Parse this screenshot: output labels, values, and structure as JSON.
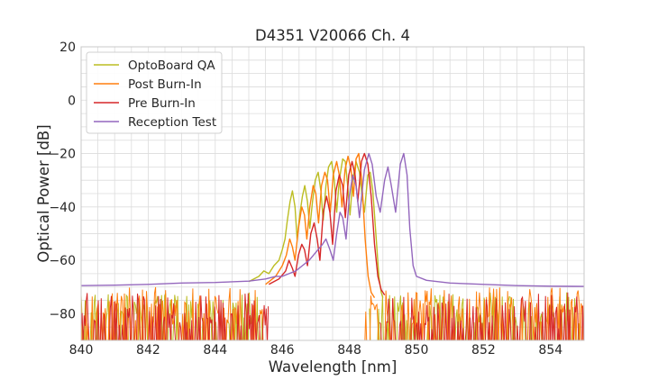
{
  "chart_data": {
    "type": "line",
    "title": "D4351 V20066 Ch. 4",
    "xlabel": "Wavelength [nm]",
    "ylabel": "Optical Power [dB]",
    "xlim": [
      840,
      855
    ],
    "ylim": [
      -90,
      20
    ],
    "xticks": [
      840,
      842,
      844,
      846,
      848,
      850,
      852,
      854
    ],
    "yticks": [
      20,
      0,
      -20,
      -40,
      -60,
      -80
    ],
    "ytick_labels": [
      "20",
      "0",
      "−20",
      "−40",
      "−60",
      "−80"
    ],
    "grid": true,
    "legend_position": "top-left",
    "series": [
      {
        "name": "OptoBoard QA",
        "color": "#bcbd22",
        "points": [
          [
            845.0,
            -68
          ],
          [
            845.3,
            -66
          ],
          [
            845.45,
            -64
          ],
          [
            845.6,
            -65
          ],
          [
            845.75,
            -62
          ],
          [
            845.9,
            -60
          ],
          [
            846.0,
            -56
          ],
          [
            846.08,
            -52
          ],
          [
            846.15,
            -45
          ],
          [
            846.23,
            -38
          ],
          [
            846.3,
            -34
          ],
          [
            846.38,
            -40
          ],
          [
            846.44,
            -52
          ],
          [
            846.52,
            -43
          ],
          [
            846.6,
            -36
          ],
          [
            846.67,
            -32
          ],
          [
            846.75,
            -38
          ],
          [
            846.82,
            -48
          ],
          [
            846.9,
            -38
          ],
          [
            846.98,
            -30
          ],
          [
            847.07,
            -27
          ],
          [
            847.15,
            -34
          ],
          [
            847.22,
            -45
          ],
          [
            847.3,
            -32
          ],
          [
            847.38,
            -25
          ],
          [
            847.47,
            -23
          ],
          [
            847.55,
            -30
          ],
          [
            847.62,
            -42
          ],
          [
            847.7,
            -30
          ],
          [
            847.8,
            -22
          ],
          [
            847.88,
            -23
          ],
          [
            847.95,
            -32
          ],
          [
            848.02,
            -43
          ],
          [
            848.1,
            -30
          ],
          [
            848.2,
            -23
          ],
          [
            848.3,
            -27
          ],
          [
            848.38,
            -36
          ],
          [
            848.45,
            -42
          ],
          [
            848.55,
            -28
          ],
          [
            848.62,
            -27
          ],
          [
            848.7,
            -34
          ],
          [
            848.8,
            -52
          ],
          [
            848.88,
            -66
          ],
          [
            848.95,
            -72
          ],
          [
            849.0,
            -74
          ]
        ]
      },
      {
        "name": "Post Burn-In",
        "color": "#ff7f0e",
        "points": [
          [
            845.5,
            -69
          ],
          [
            845.8,
            -66
          ],
          [
            846.0,
            -62
          ],
          [
            846.12,
            -58
          ],
          [
            846.22,
            -52
          ],
          [
            846.3,
            -55
          ],
          [
            846.38,
            -60
          ],
          [
            846.48,
            -48
          ],
          [
            846.58,
            -40
          ],
          [
            846.66,
            -43
          ],
          [
            846.73,
            -52
          ],
          [
            846.82,
            -40
          ],
          [
            846.92,
            -32
          ],
          [
            847.0,
            -35
          ],
          [
            847.08,
            -46
          ],
          [
            847.17,
            -32
          ],
          [
            847.27,
            -27
          ],
          [
            847.35,
            -30
          ],
          [
            847.43,
            -42
          ],
          [
            847.52,
            -28
          ],
          [
            847.62,
            -23
          ],
          [
            847.7,
            -28
          ],
          [
            847.78,
            -40
          ],
          [
            847.87,
            -26
          ],
          [
            847.96,
            -21
          ],
          [
            848.05,
            -26
          ],
          [
            848.12,
            -36
          ],
          [
            848.2,
            -22
          ],
          [
            848.28,
            -20
          ],
          [
            848.37,
            -30
          ],
          [
            848.47,
            -52
          ],
          [
            848.56,
            -66
          ],
          [
            848.65,
            -72
          ],
          [
            848.75,
            -74
          ]
        ]
      },
      {
        "name": "Pre Burn-In",
        "color": "#d62728",
        "points": [
          [
            845.6,
            -69
          ],
          [
            845.9,
            -67
          ],
          [
            846.1,
            -64
          ],
          [
            846.2,
            -60
          ],
          [
            846.3,
            -63
          ],
          [
            846.38,
            -66
          ],
          [
            846.48,
            -58
          ],
          [
            846.58,
            -54
          ],
          [
            846.66,
            -56
          ],
          [
            846.75,
            -62
          ],
          [
            846.85,
            -50
          ],
          [
            846.95,
            -46
          ],
          [
            847.04,
            -52
          ],
          [
            847.12,
            -60
          ],
          [
            847.22,
            -42
          ],
          [
            847.32,
            -36
          ],
          [
            847.42,
            -42
          ],
          [
            847.5,
            -54
          ],
          [
            847.6,
            -34
          ],
          [
            847.7,
            -28
          ],
          [
            847.8,
            -32
          ],
          [
            847.88,
            -44
          ],
          [
            847.98,
            -28
          ],
          [
            848.08,
            -23
          ],
          [
            848.17,
            -28
          ],
          [
            848.25,
            -38
          ],
          [
            848.36,
            -23
          ],
          [
            848.45,
            -20
          ],
          [
            848.55,
            -24
          ],
          [
            848.65,
            -36
          ],
          [
            848.75,
            -54
          ],
          [
            848.85,
            -66
          ],
          [
            848.95,
            -71
          ],
          [
            849.05,
            -73
          ]
        ]
      },
      {
        "name": "Reception Test",
        "color": "#9467bd",
        "points": [
          [
            840,
            -69.5
          ],
          [
            841,
            -69.3
          ],
          [
            842,
            -69
          ],
          [
            843,
            -68.5
          ],
          [
            844,
            -68.3
          ],
          [
            845,
            -67.8
          ],
          [
            845.5,
            -67
          ],
          [
            845.8,
            -66
          ],
          [
            846.0,
            -66
          ],
          [
            846.2,
            -65
          ],
          [
            846.4,
            -64
          ],
          [
            846.6,
            -62
          ],
          [
            846.8,
            -60
          ],
          [
            847.0,
            -57
          ],
          [
            847.2,
            -54
          ],
          [
            847.3,
            -52
          ],
          [
            847.42,
            -56
          ],
          [
            847.52,
            -60
          ],
          [
            847.62,
            -50
          ],
          [
            847.72,
            -42
          ],
          [
            847.8,
            -44
          ],
          [
            847.9,
            -52
          ],
          [
            848.0,
            -36
          ],
          [
            848.1,
            -28
          ],
          [
            848.2,
            -32
          ],
          [
            848.3,
            -44
          ],
          [
            848.45,
            -26
          ],
          [
            848.58,
            -20
          ],
          [
            848.68,
            -24
          ],
          [
            848.8,
            -36
          ],
          [
            848.92,
            -42
          ],
          [
            849.05,
            -30
          ],
          [
            849.15,
            -25
          ],
          [
            849.25,
            -32
          ],
          [
            849.38,
            -42
          ],
          [
            849.52,
            -24
          ],
          [
            849.62,
            -20
          ],
          [
            849.72,
            -28
          ],
          [
            849.8,
            -48
          ],
          [
            849.9,
            -62
          ],
          [
            850.0,
            -66
          ],
          [
            850.3,
            -67.5
          ],
          [
            851,
            -68.5
          ],
          [
            852,
            -69
          ],
          [
            853,
            -69.5
          ],
          [
            854,
            -69.7
          ],
          [
            855,
            -69.8
          ]
        ]
      }
    ]
  }
}
